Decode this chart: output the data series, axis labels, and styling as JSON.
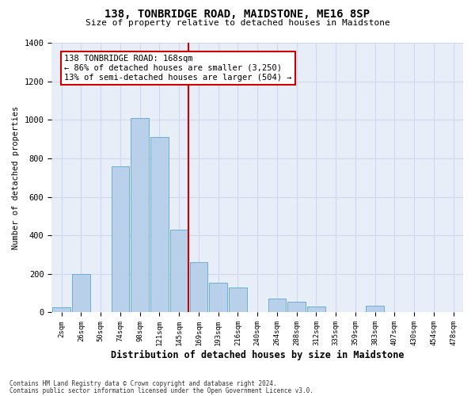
{
  "title": "138, TONBRIDGE ROAD, MAIDSTONE, ME16 8SP",
  "subtitle": "Size of property relative to detached houses in Maidstone",
  "xlabel": "Distribution of detached houses by size in Maidstone",
  "ylabel": "Number of detached properties",
  "bar_labels": [
    "2sqm",
    "26sqm",
    "50sqm",
    "74sqm",
    "98sqm",
    "121sqm",
    "145sqm",
    "169sqm",
    "193sqm",
    "216sqm",
    "240sqm",
    "264sqm",
    "288sqm",
    "312sqm",
    "335sqm",
    "359sqm",
    "383sqm",
    "407sqm",
    "430sqm",
    "454sqm",
    "478sqm"
  ],
  "bar_values": [
    25,
    200,
    0,
    760,
    1010,
    910,
    430,
    260,
    155,
    130,
    0,
    70,
    55,
    30,
    0,
    0,
    35,
    0,
    0,
    0,
    0
  ],
  "bar_color": "#b8d0ea",
  "bar_edgecolor": "#6aaed6",
  "bg_color": "#e8eef8",
  "grid_color": "#d0d8ee",
  "vline_x_idx": 6,
  "vline_color": "#cc0000",
  "annotation_text": "138 TONBRIDGE ROAD: 168sqm\n← 86% of detached houses are smaller (3,250)\n13% of semi-detached houses are larger (504) →",
  "annotation_box_edgecolor": "#cc0000",
  "ylim_max": 1400,
  "yticks": [
    0,
    200,
    400,
    600,
    800,
    1000,
    1200,
    1400
  ],
  "footer1": "Contains HM Land Registry data © Crown copyright and database right 2024.",
  "footer2": "Contains public sector information licensed under the Open Government Licence v3.0."
}
